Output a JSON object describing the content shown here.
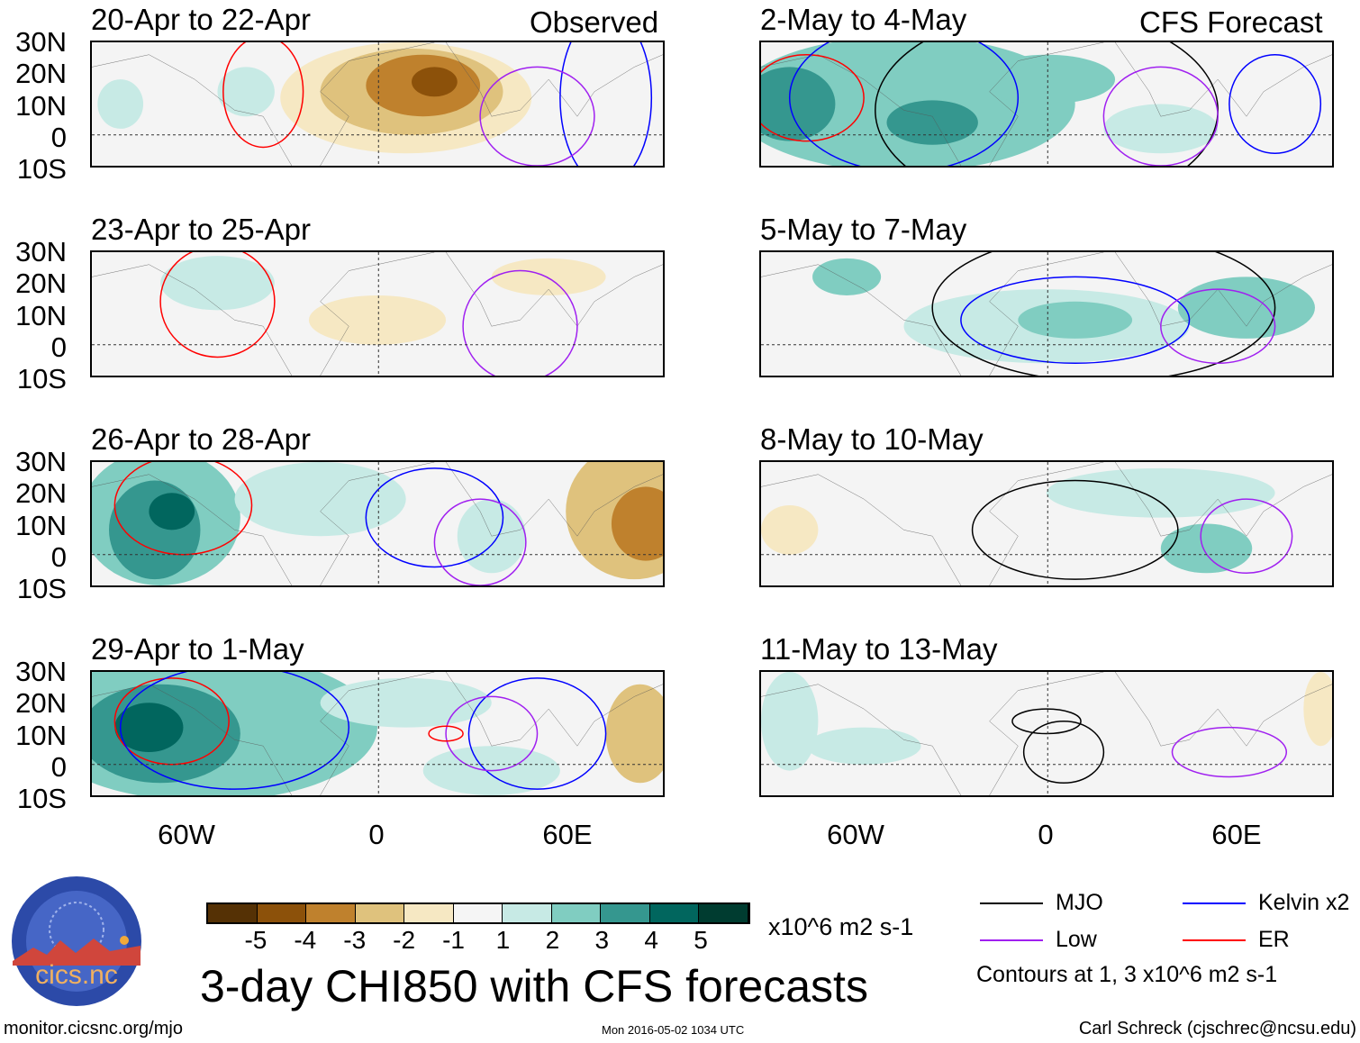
{
  "column_headers": {
    "left": "Observed",
    "right": "CFS Forecast"
  },
  "panels": {
    "left": [
      "20-Apr to 22-Apr",
      "23-Apr to 25-Apr",
      "26-Apr to 28-Apr",
      "29-Apr to 1-May"
    ],
    "right": [
      "2-May to 4-May",
      "5-May to 7-May",
      "8-May to 10-May",
      "11-May to 13-May"
    ]
  },
  "lat_labels": [
    "30N",
    "20N",
    "10N",
    "0",
    "10S"
  ],
  "lon_labels": [
    "60W",
    "0",
    "60E"
  ],
  "chart_data": {
    "type": "heatmap",
    "title": "3-day CHI850 with CFS forecasts",
    "variable": "CHI850 anomaly",
    "units": "x10^6 m2 s-1",
    "lat_range": [
      -10,
      30
    ],
    "lon_range": [
      -90,
      90
    ],
    "colorbar": {
      "levels": [
        "-5",
        "-4",
        "-3",
        "-2",
        "-1",
        "1",
        "2",
        "3",
        "4",
        "5"
      ],
      "colors": [
        "#553105",
        "#8c510a",
        "#bf812d",
        "#dfc27d",
        "#f6e8c3",
        "#f5f5f5",
        "#c7eae5",
        "#80cdc1",
        "#35978f",
        "#01665e",
        "#003c30"
      ]
    },
    "legend": [
      {
        "label": "MJO",
        "color": "#000000"
      },
      {
        "label": "Kelvin x2",
        "color": "#0000ff"
      },
      {
        "label": "Low",
        "color": "#a020f0"
      },
      {
        "label": "ER",
        "color": "#ff0000"
      }
    ],
    "contour_note": "Contours at 1, 3 x10^6 m2 s-1"
  },
  "logo": {
    "text": "cics.nc",
    "ring": "Cooperative Institute for Climate and Satellites"
  },
  "footer": {
    "url": "monitor.cicsnc.org/mjo",
    "timestamp": "Mon 2016-05-02 1034 UTC",
    "author": "Carl Schreck (cjschrec@ncsu.edu)"
  }
}
